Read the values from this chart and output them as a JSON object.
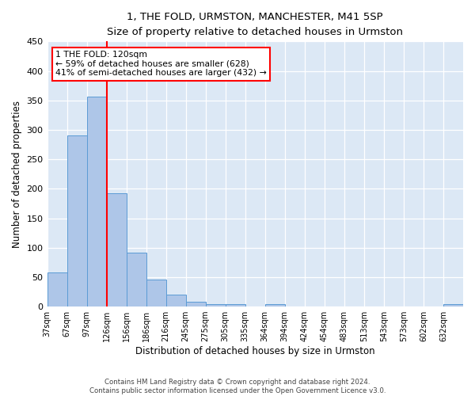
{
  "title": "1, THE FOLD, URMSTON, MANCHESTER, M41 5SP",
  "subtitle": "Size of property relative to detached houses in Urmston",
  "xlabel": "Distribution of detached houses by size in Urmston",
  "ylabel": "Number of detached properties",
  "bin_labels": [
    "37sqm",
    "67sqm",
    "97sqm",
    "126sqm",
    "156sqm",
    "186sqm",
    "216sqm",
    "245sqm",
    "275sqm",
    "305sqm",
    "335sqm",
    "364sqm",
    "394sqm",
    "424sqm",
    "454sqm",
    "483sqm",
    "513sqm",
    "543sqm",
    "573sqm",
    "602sqm",
    "632sqm"
  ],
  "bar_values": [
    58,
    290,
    356,
    192,
    91,
    46,
    20,
    8,
    4,
    4,
    0,
    4,
    0,
    0,
    0,
    0,
    0,
    0,
    0,
    0,
    4
  ],
  "bar_color": "#aec6e8",
  "bar_edge_color": "#5b9bd5",
  "vline_x": 3,
  "vline_color": "red",
  "annotation_title": "1 THE FOLD: 120sqm",
  "annotation_line1": "← 59% of detached houses are smaller (628)",
  "annotation_line2": "41% of semi-detached houses are larger (432) →",
  "annotation_box_color": "white",
  "annotation_box_edge": "red",
  "ylim": [
    0,
    450
  ],
  "yticks": [
    0,
    50,
    100,
    150,
    200,
    250,
    300,
    350,
    400,
    450
  ],
  "footer1": "Contains HM Land Registry data © Crown copyright and database right 2024.",
  "footer2": "Contains public sector information licensed under the Open Government Licence v3.0.",
  "num_bins": 21
}
